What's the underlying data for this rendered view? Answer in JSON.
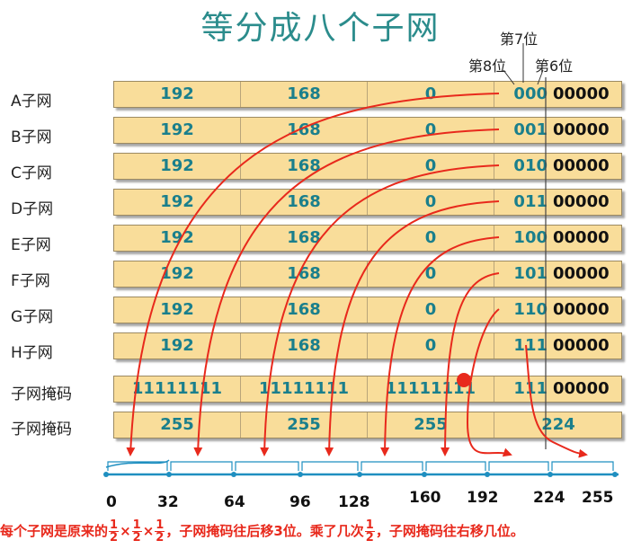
{
  "title": "等分成八个子网",
  "bit_labels": {
    "bit7": "第7位",
    "bit8": "第8位",
    "bit6": "第6位"
  },
  "rows": [
    {
      "label": "A子网",
      "o1": "192",
      "o2": "168",
      "o3": "0",
      "bits": "000",
      "rest": "00000"
    },
    {
      "label": "B子网",
      "o1": "192",
      "o2": "168",
      "o3": "0",
      "bits": "001",
      "rest": "00000"
    },
    {
      "label": "C子网",
      "o1": "192",
      "o2": "168",
      "o3": "0",
      "bits": "010",
      "rest": "00000"
    },
    {
      "label": "D子网",
      "o1": "192",
      "o2": "168",
      "o3": "0",
      "bits": "011",
      "rest": "00000"
    },
    {
      "label": "E子网",
      "o1": "192",
      "o2": "168",
      "o3": "0",
      "bits": "100",
      "rest": "00000"
    },
    {
      "label": "F子网",
      "o1": "192",
      "o2": "168",
      "o3": "0",
      "bits": "101",
      "rest": "00000"
    },
    {
      "label": "G子网",
      "o1": "192",
      "o2": "168",
      "o3": "0",
      "bits": "110",
      "rest": "00000"
    },
    {
      "label": "H子网",
      "o1": "192",
      "o2": "168",
      "o3": "0",
      "bits": "111",
      "rest": "00000"
    }
  ],
  "mask_binary": {
    "label": "子网掩码",
    "o1": "11111111",
    "o2": "11111111",
    "o3": "11111111",
    "bits": "111",
    "rest": "00000"
  },
  "mask_decimal": {
    "label": "子网掩码",
    "o1": "255",
    "o2": "255",
    "o3": "255",
    "o4": "224"
  },
  "number_line": [
    "0",
    "32",
    "64",
    "96",
    "128",
    "160",
    "192",
    "224",
    "255"
  ],
  "footer": {
    "part1": "每个子网是原来的",
    "times": "×",
    "frac_num": "1",
    "frac_den": "2",
    "part2": "，子网掩码往后移3位。乘了几次",
    "part3": "，子网掩码往右移几位。"
  },
  "colors": {
    "title": "#2b8c8c",
    "row_fill": "#f9dd9a",
    "octet_text": "#1a7f8c",
    "arrow": "#e8291c",
    "axis": "#1f8fc0"
  }
}
